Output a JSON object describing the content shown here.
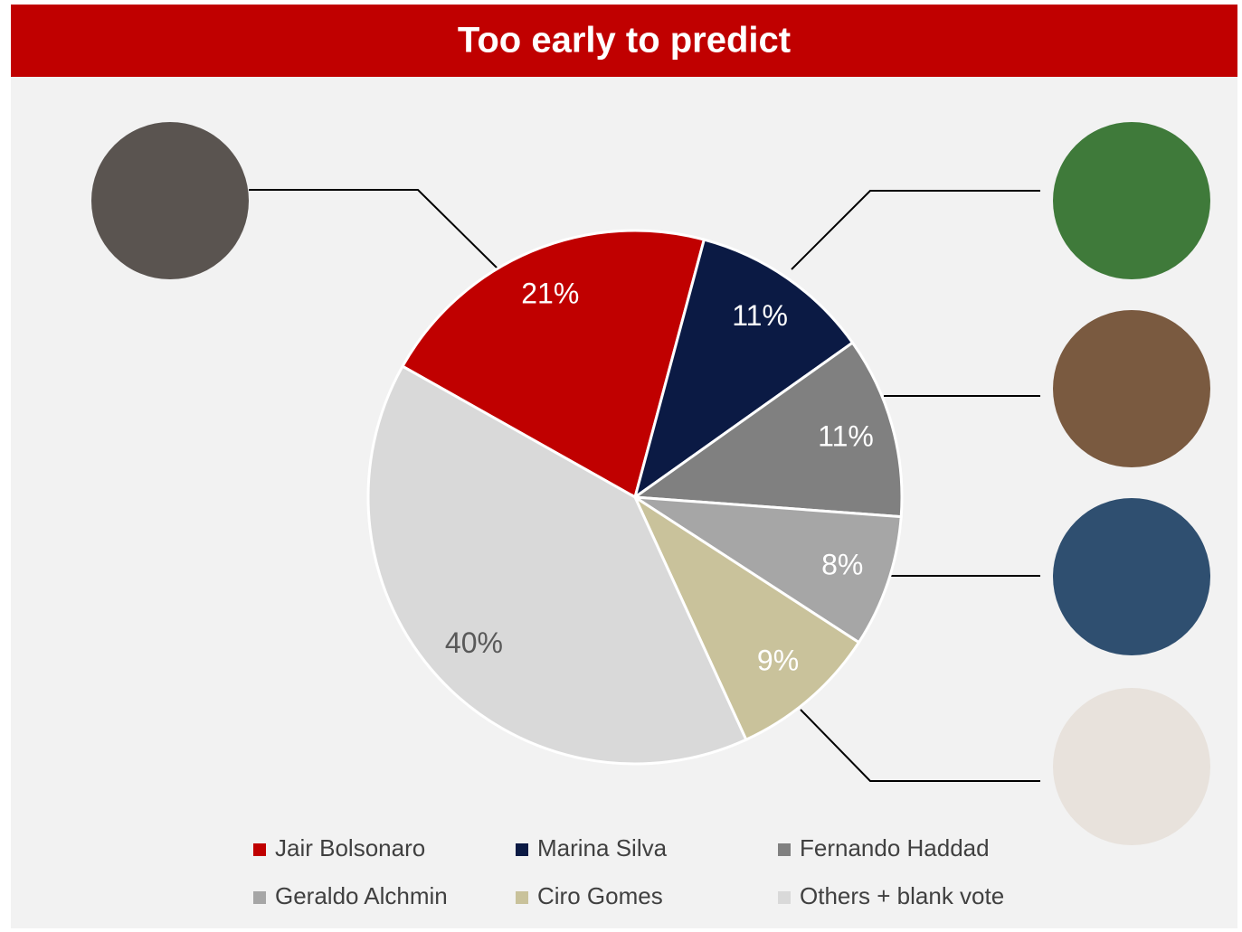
{
  "chart_data": {
    "type": "pie",
    "title": "Too early to predict",
    "categories": [
      "Jair Bolsonaro",
      "Marina Silva",
      "Fernando Haddad",
      "Geraldo Alchmin",
      "Ciro Gomes",
      "Others + blank vote"
    ],
    "values": [
      21,
      11,
      11,
      8,
      9,
      40
    ],
    "value_labels": [
      "21%",
      "11%",
      "11%",
      "8%",
      "9%",
      "40%"
    ],
    "colors": [
      "#c00000",
      "#0b1a44",
      "#808080",
      "#a6a6a6",
      "#c9c29b",
      "#d9d9d9"
    ],
    "label_colors": [
      "#ffffff",
      "#ffffff",
      "#ffffff",
      "#ffffff",
      "#ffffff",
      "#595959"
    ],
    "legend": "bottom"
  }
}
